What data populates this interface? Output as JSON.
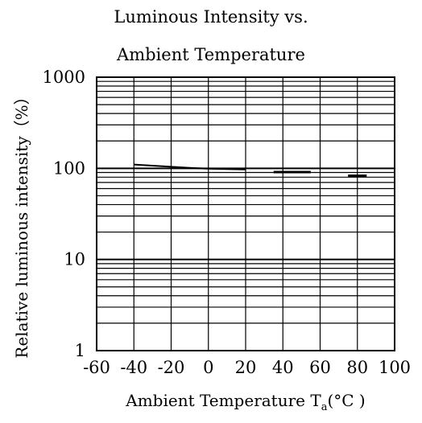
{
  "chart_data": {
    "type": "line",
    "title_lines": [
      "Luminous Intensity vs.",
      "Ambient Temperature"
    ],
    "xlabel": "Ambient Temperature T",
    "xlabel_subscript": "a",
    "xlabel_unit": "(°C )",
    "ylabel": "Relative luminous intensity（%）",
    "xlim": [
      -60,
      100
    ],
    "ylim": [
      1,
      1000
    ],
    "yscale": "log",
    "x_ticks": [
      -60,
      -40,
      -20,
      0,
      20,
      40,
      60,
      80,
      100
    ],
    "y_ticks": [
      1,
      10,
      100,
      1000
    ],
    "x_tick_labels": [
      "-60",
      "-40",
      "-20",
      "0",
      "20",
      "40",
      "60",
      "80",
      "100"
    ],
    "y_tick_labels": [
      "1",
      "10",
      "100",
      "1000"
    ],
    "grid": true,
    "series": [
      {
        "x": [
          -40,
          -30,
          -20,
          -10,
          0,
          10,
          20
        ],
        "y": [
          110,
          107,
          104,
          101,
          99,
          98,
          97
        ],
        "stroke_width": 2
      },
      {
        "x": [
          35,
          40,
          45,
          50,
          55
        ],
        "y": [
          91,
          91,
          91,
          91,
          91
        ],
        "stroke_width": 3
      },
      {
        "x": [
          75,
          80,
          85
        ],
        "y": [
          83,
          83,
          83
        ],
        "stroke_width": 3
      }
    ]
  }
}
